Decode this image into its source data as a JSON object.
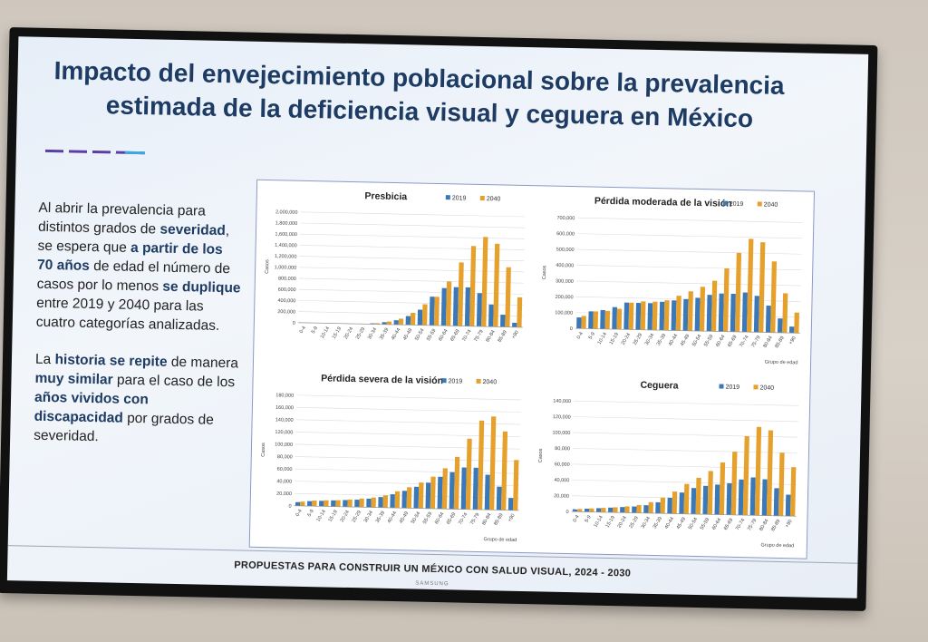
{
  "slide": {
    "title_line1": "Impacto del envejecimiento poblacional sobre la prevalencia",
    "title_line2": "estimada de la deficiencia visual  y ceguera en México",
    "footer": "PROPUESTAS PARA CONSTRUIR UN MÉXICO CON SALUD VISUAL, 2024 - 2030",
    "brand": "SAMSUNG",
    "p1": [
      {
        "t": "Al abrir la prevalencia para distintos grados de ",
        "b": false
      },
      {
        "t": "severidad",
        "b": true
      },
      {
        "t": ", se espera que ",
        "b": false
      },
      {
        "t": "a partir de los 70 años",
        "b": true
      },
      {
        "t": " de edad el número de casos por lo menos ",
        "b": false
      },
      {
        "t": "se duplique",
        "b": true
      },
      {
        "t": " entre 2019 y 2040 para las cuatro categorías analizadas.",
        "b": false
      }
    ],
    "p2": [
      {
        "t": "La ",
        "b": false
      },
      {
        "t": "historia se repite",
        "b": true
      },
      {
        "t": " de manera ",
        "b": false
      },
      {
        "t": "muy similar",
        "b": true
      },
      {
        "t": " para el caso de los ",
        "b": false
      },
      {
        "t": "años vividos con discapacidad",
        "b": true
      },
      {
        "t": " por grados de severidad.",
        "b": false
      }
    ]
  },
  "colors": {
    "s2019": "#3a78b8",
    "s2040": "#e6a02c",
    "title": "#1d3b63"
  },
  "chart_data": [
    {
      "type": "bar",
      "title": "Presbicia",
      "ylabel": "Casos",
      "xlabel": "",
      "ylim": [
        0,
        2000000
      ],
      "yticks": [
        "0",
        "200,000",
        "400,000",
        "600,000",
        "800,000",
        "1,000,000",
        "1,200,000",
        "1,400,000",
        "1,600,000",
        "1,800,000",
        "2,000,000"
      ],
      "categories": [
        "0-4",
        "5-9",
        "10-14",
        "15-19",
        "20-24",
        "25-29",
        "30-34",
        "35-39",
        "40-44",
        "45-49",
        "50-54",
        "55-59",
        "60-64",
        "65-69",
        "70-74",
        "75-79",
        "80-84",
        "85-89",
        "+90"
      ],
      "series": [
        {
          "name": "2019",
          "values": [
            0,
            0,
            0,
            0,
            0,
            5000,
            15000,
            40000,
            80000,
            160000,
            280000,
            520000,
            680000,
            700000,
            700000,
            600000,
            400000,
            220000,
            80000
          ]
        },
        {
          "name": "2040",
          "values": [
            0,
            0,
            0,
            0,
            0,
            6000,
            20000,
            55000,
            110000,
            220000,
            380000,
            520000,
            800000,
            1150000,
            1450000,
            1620000,
            1500000,
            1080000,
            540000
          ]
        }
      ]
    },
    {
      "type": "bar",
      "title": "Pérdida moderada de la visión",
      "ylabel": "Casos",
      "xlabel": "Grupo de edad",
      "ylim": [
        0,
        700000
      ],
      "yticks": [
        "0",
        "100,000",
        "200,000",
        "300,000",
        "400,000",
        "500,000",
        "600,000",
        "700,000"
      ],
      "categories": [
        "0-4",
        "5-9",
        "10-14",
        "15-19",
        "20-24",
        "25-29",
        "30-34",
        "35-39",
        "40-44",
        "45-49",
        "50-54",
        "55-59",
        "60-64",
        "65-69",
        "70-74",
        "75-79",
        "80-84",
        "85-89",
        "+90"
      ],
      "series": [
        {
          "name": "2019",
          "values": [
            70000,
            110000,
            120000,
            140000,
            170000,
            170000,
            170000,
            180000,
            190000,
            200000,
            210000,
            230000,
            240000,
            240000,
            250000,
            230000,
            170000,
            90000,
            40000
          ]
        },
        {
          "name": "2040",
          "values": [
            80000,
            110000,
            115000,
            130000,
            170000,
            180000,
            180000,
            190000,
            220000,
            250000,
            280000,
            320000,
            400000,
            500000,
            590000,
            570000,
            450000,
            250000,
            130000
          ]
        }
      ]
    },
    {
      "type": "bar",
      "title": "Pérdida severa de la visión",
      "ylabel": "Casos",
      "xlabel": "Grupo de edad",
      "ylim": [
        0,
        180000
      ],
      "yticks": [
        "0",
        "20,000",
        "40,000",
        "60,000",
        "80,000",
        "100,000",
        "120,000",
        "140,000",
        "160,000",
        "180,000"
      ],
      "categories": [
        "0-4",
        "5-9",
        "10-14",
        "15-19",
        "20-24",
        "25-29",
        "30-34",
        "35-39",
        "40-44",
        "45-49",
        "50-54",
        "55-59",
        "60-64",
        "65-69",
        "70-74",
        "75-79",
        "80-84",
        "85-89",
        "+90"
      ],
      "series": [
        {
          "name": "2019",
          "values": [
            6000,
            8000,
            9000,
            10000,
            11000,
            12000,
            14000,
            17000,
            22000,
            28000,
            35000,
            42000,
            52000,
            60000,
            68000,
            68000,
            57000,
            38000,
            20000
          ]
        },
        {
          "name": "2040",
          "values": [
            7000,
            9000,
            10000,
            10500,
            12000,
            14000,
            16000,
            20000,
            27000,
            34000,
            42000,
            52000,
            66000,
            85000,
            115000,
            145000,
            152000,
            128000,
            82000
          ]
        }
      ]
    },
    {
      "type": "bar",
      "title": "Ceguera",
      "ylabel": "Casos",
      "xlabel": "Grupo de edad",
      "ylim": [
        0,
        140000
      ],
      "yticks": [
        "0",
        "20,000",
        "40,000",
        "60,000",
        "80,000",
        "100,000",
        "120,000",
        "140,000"
      ],
      "categories": [
        "0-4",
        "5-9",
        "10-14",
        "15-19",
        "20-24",
        "25-29",
        "30-34",
        "35-39",
        "40-44",
        "45-49",
        "50-54",
        "55-59",
        "60-64",
        "65-69",
        "70-74",
        "75-79",
        "80-84",
        "85-89",
        "+90"
      ],
      "series": [
        {
          "name": "2019",
          "values": [
            3000,
            4000,
            5000,
            6000,
            7000,
            8000,
            10000,
            14000,
            20000,
            27000,
            33000,
            36000,
            38000,
            40000,
            45000,
            48000,
            46000,
            35000,
            27000
          ]
        },
        {
          "name": "2040",
          "values": [
            3500,
            4500,
            5500,
            6500,
            8000,
            10000,
            14000,
            20000,
            28000,
            38000,
            46000,
            55000,
            66000,
            80000,
            100000,
            112000,
            108000,
            80000,
            62000
          ]
        }
      ]
    }
  ]
}
